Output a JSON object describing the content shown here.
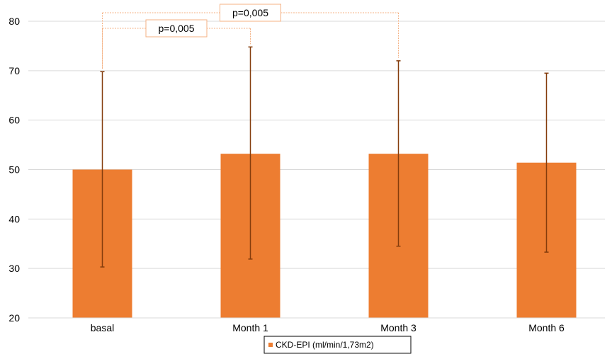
{
  "chart_data": {
    "type": "bar",
    "categories": [
      "basal",
      "Month 1",
      "Month 3",
      "Month 6"
    ],
    "series": [
      {
        "name": "CKD-EPI (ml/min/1,73m2)",
        "values": [
          50.0,
          53.2,
          53.2,
          51.4
        ],
        "error_low": [
          30.3,
          31.9,
          34.5,
          33.3
        ],
        "error_high": [
          69.8,
          74.8,
          72.0,
          69.5
        ],
        "color": "#ED7D31"
      }
    ],
    "ylim": [
      20,
      80
    ],
    "yticks": [
      20,
      30,
      40,
      50,
      60,
      70,
      80
    ],
    "grid": true,
    "legend_position": "bottom-center",
    "annotations": [
      {
        "from": "basal",
        "to": "Month 1",
        "label": "p=0,005"
      },
      {
        "from": "basal",
        "to": "Month 3",
        "label": "p=0,005"
      }
    ],
    "colors": {
      "bar": "#ED7D31",
      "error_bar": "#843C0C",
      "bracket": "#F4B183",
      "grid": "#D9D9D9"
    }
  }
}
